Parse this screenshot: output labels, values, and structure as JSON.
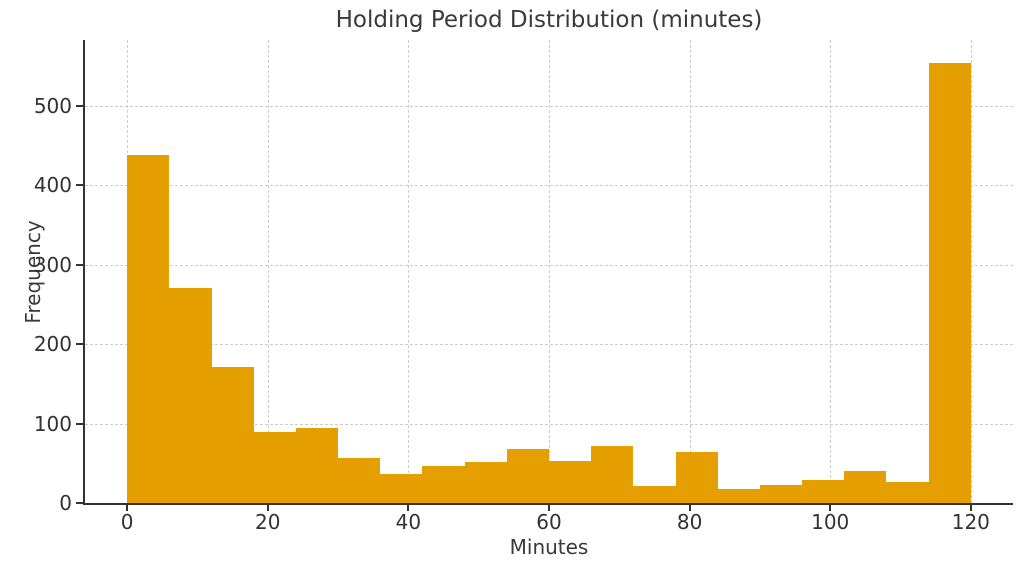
{
  "chart_data": {
    "type": "bar",
    "subtype": "histogram",
    "title": "Holding Period Distribution (minutes)",
    "xlabel": "Minutes",
    "ylabel": "Frequency",
    "bin_edges": [
      0,
      6,
      12,
      18,
      24,
      30,
      36,
      42,
      48,
      54,
      60,
      66,
      72,
      78,
      84,
      90,
      96,
      102,
      108,
      114,
      120
    ],
    "values": [
      438,
      271,
      171,
      89,
      95,
      57,
      36,
      46,
      52,
      68,
      53,
      72,
      22,
      64,
      18,
      23,
      29,
      40,
      27,
      554
    ],
    "xticks": [
      0,
      20,
      40,
      60,
      80,
      100,
      120
    ],
    "yticks": [
      0,
      100,
      200,
      300,
      400,
      500
    ],
    "xlim": [
      -6,
      126
    ],
    "ylim": [
      0,
      583
    ],
    "grid": true,
    "grid_style": "dashed",
    "legend": "none",
    "bar_color": "#E69F00",
    "grid_color": "#cccccc",
    "axis_color": "#333333",
    "text_color": "#3a3a3a"
  }
}
